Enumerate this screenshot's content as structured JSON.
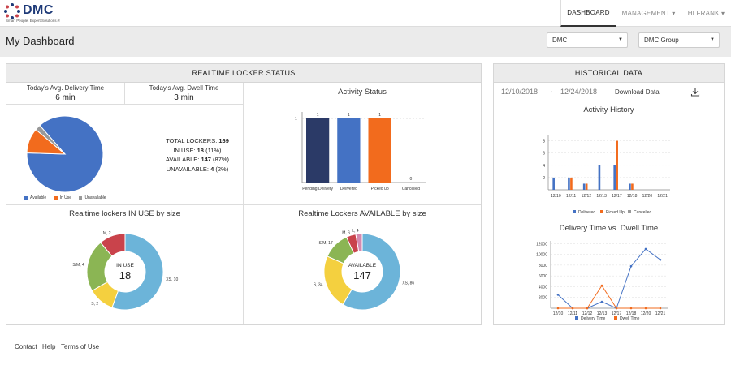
{
  "brand": {
    "name": "DMC",
    "tagline": "Smart People. Expert Solutions.®"
  },
  "nav": {
    "dashboard": "DASHBOARD",
    "management": "MANAGEMENT ▾",
    "user": "HI FRANK ▾"
  },
  "page_title": "My Dashboard",
  "filters": {
    "site": "DMC",
    "group": "DMC Group"
  },
  "realtime": {
    "title": "REALTIME LOCKER STATUS",
    "delivery_label": "Today's Avg. Delivery Time",
    "delivery_value": "6 min",
    "dwell_label": "Today's Avg. Dwell Time",
    "dwell_value": "3 min",
    "stats": {
      "total_label": "TOTAL LOCKERS:",
      "total": "169",
      "inuse_label": "IN USE:",
      "inuse": "18",
      "inuse_pct": "(11%)",
      "available_label": "AVAILABLE:",
      "available": "147",
      "available_pct": "(87%)",
      "unavailable_label": "UNAVAILABLE:",
      "unavailable": "4",
      "unavailable_pct": "(2%)"
    },
    "activity_title": "Activity Status",
    "inuse_size_title": "Realtime lockers IN USE by size",
    "available_size_title": "Realtime Lockers AVAILABLE by size"
  },
  "historical": {
    "title": "HISTORICAL DATA",
    "date_from": "12/10/2018",
    "arrow": "→",
    "date_to": "12/24/2018",
    "download_label": "Download Data",
    "activity_history_title": "Activity History",
    "delivery_dwell_title": "Delivery Time vs. Dwell Time"
  },
  "footer": {
    "contact": "Contact",
    "help": "Help",
    "terms": "Terms of Use"
  },
  "colors": {
    "blue": "#4472c4",
    "orange": "#f26b1d",
    "gray": "#999999",
    "navy": "#2b3a67",
    "skyblue": "#6cb4d9",
    "yellow": "#f4d03f",
    "green": "#8bb554",
    "red": "#c9434b",
    "pink": "#d48ab0"
  },
  "chart_data": [
    {
      "id": "locker_status_pie",
      "type": "pie",
      "categories": [
        "Available",
        "In Use",
        "Unavailable"
      ],
      "values": [
        147,
        18,
        4
      ],
      "legend": "bottom"
    },
    {
      "id": "activity_status",
      "type": "bar",
      "title": "Activity Status",
      "categories": [
        "Pending Delivery",
        "Delivered",
        "Picked up",
        "Cancelled"
      ],
      "values": [
        1,
        1,
        1,
        0
      ],
      "data_labels": [
        "1",
        "1",
        "1",
        "0"
      ],
      "y_ref_label": "1",
      "ylim": [
        0,
        1.1
      ]
    },
    {
      "id": "inuse_by_size",
      "type": "pie",
      "title": "Realtime lockers IN USE by size",
      "center_label": "IN USE",
      "center_value": "18",
      "categories": [
        "XS",
        "S",
        "S/M",
        "M"
      ],
      "values": [
        10,
        2,
        4,
        2
      ],
      "slice_labels": [
        "XS, 10",
        "S, 2",
        "S/M, 4",
        "M, 2"
      ]
    },
    {
      "id": "available_by_size",
      "type": "pie",
      "title": "Realtime Lockers AVAILABLE by size",
      "center_label": "AVAILABLE",
      "center_value": "147",
      "categories": [
        "XS",
        "S",
        "S/M",
        "M",
        "L"
      ],
      "values": [
        86,
        34,
        17,
        6,
        4
      ],
      "slice_labels": [
        "XS, 86",
        "S, 34",
        "S/M, 17",
        "M, 6",
        "L, 4"
      ]
    },
    {
      "id": "activity_history",
      "type": "bar",
      "title": "Activity History",
      "categories": [
        "12/10",
        "12/11",
        "12/12",
        "12/13",
        "12/17",
        "12/18",
        "12/20",
        "12/21"
      ],
      "series": [
        {
          "name": "Delivered",
          "values": [
            2,
            2,
            1,
            4,
            4,
            1,
            0,
            0
          ]
        },
        {
          "name": "Picked Up",
          "values": [
            0,
            2,
            1,
            0,
            8,
            1,
            0,
            0
          ]
        },
        {
          "name": "Cancelled",
          "values": [
            0,
            0,
            0,
            0,
            0,
            0,
            0,
            0
          ]
        }
      ],
      "yticks": [
        2,
        4,
        6,
        8
      ],
      "ylim": [
        0,
        9
      ],
      "legend": "bottom"
    },
    {
      "id": "delivery_vs_dwell",
      "type": "line",
      "title": "Delivery Time vs. Dwell Time",
      "categories": [
        "12/10",
        "12/11",
        "12/12",
        "12/13",
        "12/17",
        "12/18",
        "12/20",
        "12/21"
      ],
      "series": [
        {
          "name": "Delivery Time",
          "values": [
            2500,
            0,
            0,
            1200,
            0,
            7800,
            11000,
            9000
          ]
        },
        {
          "name": "Dwell Time",
          "values": [
            0,
            0,
            0,
            4200,
            0,
            0,
            0,
            0
          ]
        }
      ],
      "yticks": [
        2000,
        4000,
        6000,
        8000,
        10000,
        12000
      ],
      "ylim": [
        0,
        12500
      ],
      "legend": "bottom"
    }
  ]
}
